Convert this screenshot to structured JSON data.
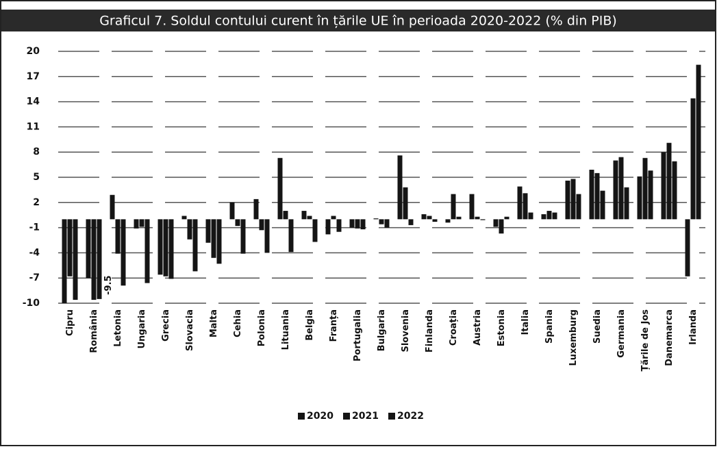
{
  "chart_data": {
    "type": "bar",
    "title": "Graficul 7. Soldul contului curent în țările UE în perioada 2020-2022 (% din PIB)",
    "categories": [
      "Cipru",
      "România",
      "Letonia",
      "Ungaria",
      "Grecia",
      "Slovacia",
      "Malta",
      "Cehia",
      "Polonia",
      "Lituania",
      "Belgia",
      "Franța",
      "Portugalia",
      "Bulgaria",
      "Slovenia",
      "Finlanda",
      "Croația",
      "Austria",
      "Estonia",
      "Italia",
      "Spania",
      "Luxemburg",
      "Suedia",
      "Germania",
      "Țările de Jos",
      "Danemarca",
      "Irlanda"
    ],
    "series": [
      {
        "name": "2020",
        "color": "#151515",
        "values": [
          -10,
          -7.0,
          2.9,
          -1.1,
          -6.6,
          0.4,
          -2.8,
          2.0,
          2.4,
          7.3,
          1.0,
          -1.8,
          -1.0,
          0.1,
          7.6,
          0.6,
          -0.4,
          3.0,
          -0.9,
          3.9,
          0.6,
          4.6,
          5.9,
          7.0,
          5.1,
          8.0,
          -6.8
        ]
      },
      {
        "name": "2021",
        "color": "#151515",
        "values": [
          -6.8,
          -9.6,
          -4.1,
          -0.9,
          -6.8,
          -2.4,
          -4.6,
          -0.8,
          -1.3,
          1.0,
          0.4,
          0.4,
          -1.1,
          -0.6,
          3.8,
          0.4,
          3.0,
          0.3,
          -1.7,
          3.1,
          1.0,
          4.8,
          5.5,
          7.4,
          7.3,
          9.1,
          14.4
        ]
      },
      {
        "name": "2022",
        "color": "#151515",
        "values": [
          -9.6,
          -9.5,
          -7.9,
          -7.6,
          -7.1,
          -6.2,
          -5.3,
          -4.1,
          -4.0,
          -3.9,
          -2.7,
          -1.5,
          -1.2,
          -1.0,
          -0.7,
          -0.3,
          0.3,
          -0.1,
          0.3,
          0.8,
          0.8,
          3.0,
          3.4,
          3.8,
          5.8,
          6.9,
          18.4
        ],
        "value_labels": [
          null,
          "-9.5",
          null,
          null,
          null,
          null,
          null,
          null,
          null,
          null,
          null,
          null,
          null,
          null,
          null,
          null,
          null,
          null,
          null,
          null,
          null,
          null,
          null,
          null,
          null,
          null,
          null
        ]
      }
    ],
    "ylim": [
      -10,
      20
    ],
    "yticks": [
      -10,
      -7,
      -4,
      -1,
      2,
      5,
      8,
      11,
      14,
      17,
      20
    ],
    "grid": true,
    "legend": "bottom"
  }
}
